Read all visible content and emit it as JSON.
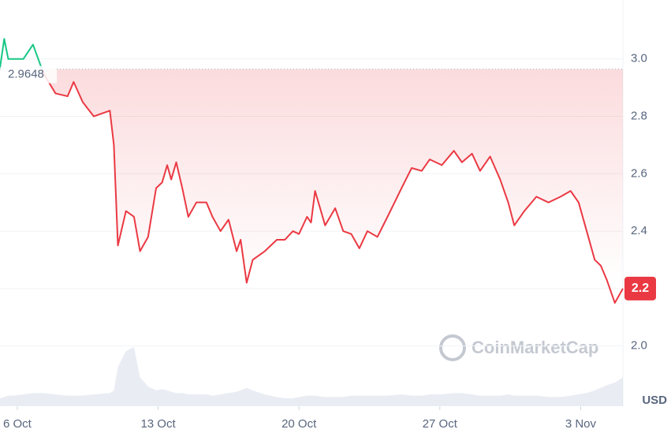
{
  "chart_data": {
    "type": "line",
    "x": [
      -0.86,
      -0.65,
      -0.45,
      -0.2,
      0.3,
      0.78,
      1.3,
      1.9,
      2.5,
      2.8,
      3.25,
      3.8,
      4.6,
      4.8,
      5.0,
      5.4,
      5.8,
      6.1,
      6.5,
      6.9,
      7.2,
      7.45,
      7.65,
      7.9,
      8.2,
      8.5,
      8.9,
      9.4,
      9.7,
      10.1,
      10.5,
      10.9,
      11.1,
      11.4,
      11.7,
      12.3,
      12.9,
      13.3,
      13.7,
      14.0,
      14.4,
      14.6,
      14.8,
      15.3,
      15.8,
      16.2,
      16.6,
      17.0,
      17.4,
      17.9,
      18.4,
      19.1,
      19.6,
      20.1,
      20.5,
      21.1,
      21.7,
      22.1,
      22.6,
      23.0,
      23.5,
      24.0,
      24.4,
      24.7,
      25.2,
      25.8,
      26.4,
      27.0,
      27.5,
      27.9,
      28.3,
      28.7,
      29.0,
      29.3,
      29.7,
      30.1
    ],
    "values": [
      2.97,
      3.07,
      3.0,
      3.0,
      3.0,
      3.05,
      2.95,
      2.88,
      2.87,
      2.92,
      2.85,
      2.8,
      2.82,
      2.7,
      2.35,
      2.47,
      2.45,
      2.33,
      2.38,
      2.55,
      2.57,
      2.63,
      2.58,
      2.64,
      2.55,
      2.45,
      2.5,
      2.5,
      2.45,
      2.4,
      2.44,
      2.33,
      2.37,
      2.22,
      2.3,
      2.33,
      2.37,
      2.37,
      2.4,
      2.39,
      2.45,
      2.43,
      2.54,
      2.42,
      2.48,
      2.4,
      2.39,
      2.34,
      2.4,
      2.38,
      2.45,
      2.55,
      2.62,
      2.61,
      2.65,
      2.63,
      2.68,
      2.64,
      2.67,
      2.61,
      2.66,
      2.58,
      2.5,
      2.42,
      2.47,
      2.52,
      2.5,
      2.52,
      2.54,
      2.5,
      2.4,
      2.3,
      2.28,
      2.23,
      2.15,
      2.2
    ],
    "volume": [
      6,
      7,
      8,
      8,
      9,
      10,
      10,
      9,
      8,
      8,
      8,
      9,
      10,
      12,
      30,
      42,
      45,
      22,
      15,
      12,
      13,
      12,
      11,
      10,
      10,
      9,
      9,
      9,
      8,
      9,
      10,
      11,
      12,
      14,
      12,
      9,
      7,
      6,
      6,
      7,
      8,
      8,
      8,
      7,
      7,
      7,
      8,
      8,
      8,
      8,
      8,
      9,
      8,
      8,
      9,
      9,
      10,
      10,
      9,
      8,
      8,
      8,
      9,
      8,
      8,
      8,
      7,
      7,
      8,
      9,
      10,
      12,
      14,
      16,
      18,
      22
    ],
    "reference": 2.9648,
    "current_price": 2.2,
    "up_color": "#16c784",
    "down_color": "#ea3943",
    "xlim": [
      -0.86,
      30.1
    ],
    "ylim": [
      1.79,
      3.2
    ],
    "xticks": [
      {
        "value": 0,
        "label": "6 Oct"
      },
      {
        "value": 7,
        "label": "13 Oct"
      },
      {
        "value": 14,
        "label": "20 Oct"
      },
      {
        "value": 21,
        "label": "27 Oct"
      },
      {
        "value": 28,
        "label": "3 Nov"
      }
    ],
    "yticks": [
      {
        "value": 2.0,
        "label": "2.0"
      },
      {
        "value": 2.2,
        "label": "2.2"
      },
      {
        "value": 2.4,
        "label": "2.4"
      },
      {
        "value": 2.6,
        "label": "2.6"
      },
      {
        "value": 2.8,
        "label": "2.8"
      },
      {
        "value": 3.0,
        "label": "3.0"
      }
    ],
    "y_unit": "USD",
    "watermark": "CoinMarketCap",
    "grid": true
  }
}
